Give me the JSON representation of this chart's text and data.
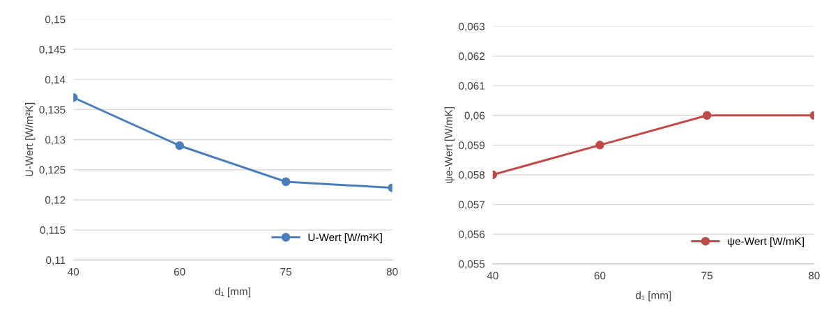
{
  "chart_data": [
    {
      "type": "line",
      "categories": [
        "40",
        "60",
        "75",
        "80"
      ],
      "xlabel": "d₁ [mm]",
      "ylabel": "U-Wert [W/m²K]",
      "series": [
        {
          "name": "U-Wert [W/m²K]",
          "color": "#4a7ebb",
          "values": [
            0.137,
            0.129,
            0.123,
            0.122
          ]
        }
      ],
      "ylim": [
        0.11,
        0.15
      ],
      "yticks": [
        {
          "value": 0.11,
          "label": "0,11"
        },
        {
          "value": 0.115,
          "label": "0,115"
        },
        {
          "value": 0.12,
          "label": "0,12"
        },
        {
          "value": 0.125,
          "label": "0,125"
        },
        {
          "value": 0.13,
          "label": "0,13"
        },
        {
          "value": 0.135,
          "label": "0,135"
        },
        {
          "value": 0.14,
          "label": "0,14"
        },
        {
          "value": 0.145,
          "label": "0,145"
        },
        {
          "value": 0.15,
          "label": "0,15"
        }
      ],
      "grid": "y",
      "legend": "bottom right",
      "marker": "circle",
      "line_style": "solid"
    },
    {
      "type": "line",
      "categories": [
        "40",
        "60",
        "75",
        "80"
      ],
      "xlabel": "d₁ [mm]",
      "ylabel": "ψe-Wert [W/mK]",
      "series": [
        {
          "name": "ψe-Wert [W/mK]",
          "color": "#be4b48",
          "values": [
            0.058,
            0.059,
            0.06,
            0.06
          ]
        }
      ],
      "ylim": [
        0.055,
        0.063
      ],
      "yticks": [
        {
          "value": 0.055,
          "label": "0,055"
        },
        {
          "value": 0.056,
          "label": "0,056"
        },
        {
          "value": 0.057,
          "label": "0,057"
        },
        {
          "value": 0.058,
          "label": "0,058"
        },
        {
          "value": 0.059,
          "label": "0,059"
        },
        {
          "value": 0.06,
          "label": "0,06"
        },
        {
          "value": 0.061,
          "label": "0,061"
        },
        {
          "value": 0.062,
          "label": "0,062"
        },
        {
          "value": 0.063,
          "label": "0,063"
        }
      ],
      "grid": "y",
      "legend": "bottom right",
      "marker": "circle",
      "line_style": "solid"
    }
  ]
}
